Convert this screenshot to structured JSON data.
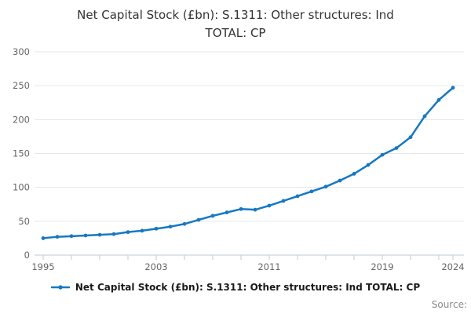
{
  "chart_data": {
    "type": "line",
    "title": "Net Capital Stock (£bn): S.1311: Other structures: Ind TOTAL: CP",
    "title_lines": [
      "Net Capital Stock (£bn): S.1311: Other structures: Ind",
      "TOTAL: CP"
    ],
    "legend": {
      "label": "Net Capital Stock (£bn): S.1311: Other structures: Ind TOTAL: CP",
      "position": "bottom",
      "marker": "line-dot"
    },
    "source_label": "Source:",
    "xlabel": "",
    "ylabel": "",
    "x": [
      1995,
      1996,
      1997,
      1998,
      1999,
      2000,
      2001,
      2002,
      2003,
      2004,
      2005,
      2006,
      2007,
      2008,
      2009,
      2010,
      2011,
      2012,
      2013,
      2014,
      2015,
      2016,
      2017,
      2018,
      2019,
      2020,
      2021,
      2022,
      2023,
      2024
    ],
    "values": [
      25,
      27,
      28,
      29,
      30,
      31,
      34,
      36,
      39,
      42,
      46,
      52,
      58,
      63,
      68,
      67,
      73,
      80,
      87,
      94,
      101,
      110,
      120,
      133,
      148,
      158,
      174,
      205,
      229,
      247
    ],
    "xlim": [
      1995,
      2024
    ],
    "ylim": [
      0,
      300
    ],
    "y_ticks": [
      0,
      50,
      100,
      150,
      200,
      250,
      300
    ],
    "x_labeled_ticks": [
      1995,
      2003,
      2011,
      2019,
      2024
    ],
    "x_minor_ticks": [
      1995,
      1997,
      1999,
      2001,
      2003,
      2005,
      2007,
      2009,
      2011,
      2013,
      2015,
      2017,
      2019,
      2021,
      2023,
      2024
    ],
    "grid": "horizontal-only",
    "legend_position": "bottom-center",
    "colors": {
      "line": "#1778c2",
      "grid": "#e6e6e6",
      "axis": "#c9d2e4",
      "tick_label": "#666666",
      "title": "#333333",
      "legend_text": "#1a1a1a",
      "source_text": "#888888"
    }
  }
}
